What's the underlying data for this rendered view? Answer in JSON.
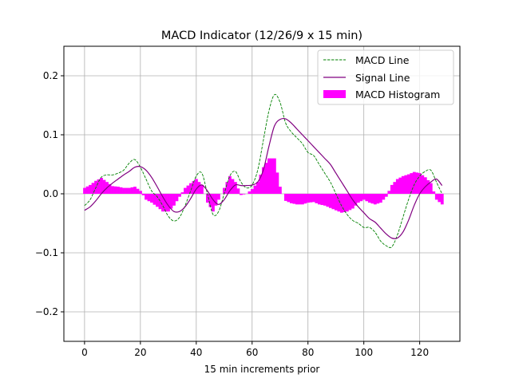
{
  "chart_data": {
    "type": "line",
    "title": "MACD Indicator (12/26/9 x 15 min)",
    "xlabel": "15 min increments prior",
    "ylabel": "",
    "xlim": [
      -7.4,
      134.4
    ],
    "ylim": [
      -0.25,
      0.25
    ],
    "grid": true,
    "legend_position": "top-right",
    "xticks": [
      0,
      20,
      40,
      60,
      80,
      100,
      120
    ],
    "xtick_labels": [
      "0",
      "20",
      "40",
      "60",
      "80",
      "100",
      "120"
    ],
    "yticks": [
      0.2,
      0.1,
      0.0,
      -0.1,
      -0.2
    ],
    "ytick_labels": [
      "0.2",
      "0.1",
      "0.0",
      "−0.1",
      "−0.2"
    ],
    "x_step": 2,
    "series": [
      {
        "name": "MACD Line",
        "color": "#008000",
        "style": "dashed",
        "values": [
          -0.02,
          -0.01,
          0.01,
          0.028,
          0.032,
          0.032,
          0.035,
          0.04,
          0.052,
          0.058,
          0.045,
          0.025,
          0.005,
          -0.005,
          -0.02,
          -0.038,
          -0.046,
          -0.04,
          -0.02,
          0.005,
          0.03,
          0.035,
          0.0,
          -0.035,
          -0.03,
          0.0,
          0.03,
          0.038,
          0.02,
          0.01,
          0.015,
          0.04,
          0.09,
          0.14,
          0.168,
          0.155,
          0.12,
          0.105,
          0.095,
          0.085,
          0.07,
          0.065,
          0.05,
          0.035,
          0.02,
          0.0,
          -0.02,
          -0.035,
          -0.045,
          -0.05,
          -0.057,
          -0.057,
          -0.065,
          -0.08,
          -0.088,
          -0.09,
          -0.07,
          -0.04,
          -0.01,
          0.015,
          0.03,
          0.038,
          0.04,
          0.02,
          0.0
        ]
      },
      {
        "name": "Signal Line",
        "color": "#800080",
        "style": "solid",
        "values": [
          -0.028,
          -0.022,
          -0.012,
          0.0,
          0.01,
          0.018,
          0.025,
          0.032,
          0.038,
          0.045,
          0.046,
          0.04,
          0.028,
          0.012,
          -0.005,
          -0.02,
          -0.03,
          -0.03,
          -0.022,
          -0.008,
          0.008,
          0.015,
          0.005,
          -0.01,
          -0.018,
          -0.01,
          0.005,
          0.015,
          0.014,
          0.014,
          0.015,
          0.02,
          0.04,
          0.08,
          0.115,
          0.126,
          0.127,
          0.12,
          0.11,
          0.1,
          0.09,
          0.08,
          0.07,
          0.06,
          0.05,
          0.035,
          0.02,
          0.005,
          -0.01,
          -0.022,
          -0.032,
          -0.042,
          -0.048,
          -0.058,
          -0.068,
          -0.075,
          -0.075,
          -0.065,
          -0.045,
          -0.02,
          0.0,
          0.012,
          0.02,
          0.025,
          0.014
        ]
      },
      {
        "name": "MACD Histogram",
        "color": "#ff00ff",
        "style": "bar",
        "values": [
          0.01,
          0.015,
          0.022,
          0.027,
          0.02,
          0.013,
          0.012,
          0.01,
          0.01,
          0.012,
          0.005,
          -0.01,
          -0.015,
          -0.022,
          -0.03,
          -0.03,
          -0.02,
          -0.005,
          0.01,
          0.018,
          0.025,
          0.015,
          -0.015,
          -0.03,
          -0.01,
          0.01,
          0.03,
          0.02,
          -0.002,
          0.0,
          0.008,
          0.02,
          0.045,
          0.06,
          0.06,
          0.012,
          -0.012,
          -0.016,
          -0.018,
          -0.018,
          -0.015,
          -0.014,
          -0.018,
          -0.02,
          -0.024,
          -0.028,
          -0.032,
          -0.03,
          -0.025,
          -0.015,
          -0.01,
          -0.015,
          -0.018,
          -0.015,
          -0.005,
          0.015,
          0.025,
          0.03,
          0.033,
          0.037,
          0.035,
          0.028,
          0.018,
          -0.01,
          -0.018
        ]
      }
    ]
  }
}
